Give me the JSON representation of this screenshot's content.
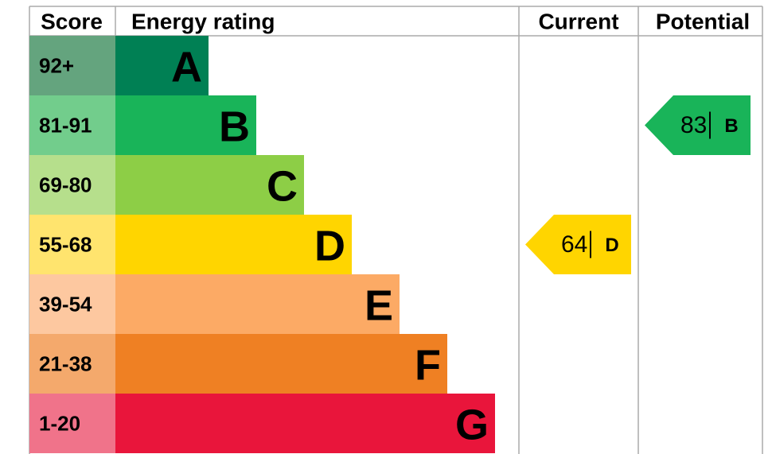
{
  "header": {
    "score": "Score",
    "rating": "Energy rating",
    "current": "Current",
    "potential": "Potential"
  },
  "bands": [
    {
      "score": "92+",
      "letter": "A",
      "color": "#008054",
      "score_color": "#64a47e"
    },
    {
      "score": "81-91",
      "letter": "B",
      "color": "#19b459",
      "score_color": "#72cd8c"
    },
    {
      "score": "69-80",
      "letter": "C",
      "color": "#8dce46",
      "score_color": "#b6df8c"
    },
    {
      "score": "55-68",
      "letter": "D",
      "color": "#ffd500",
      "score_color": "#ffe46e"
    },
    {
      "score": "39-54",
      "letter": "E",
      "color": "#fcaa65",
      "score_color": "#fdc8a0"
    },
    {
      "score": "21-38",
      "letter": "F",
      "color": "#ef8023",
      "score_color": "#f4a96c"
    },
    {
      "score": "1-20",
      "letter": "G",
      "color": "#e9153b",
      "score_color": "#f0738a"
    }
  ],
  "current": {
    "value": 64,
    "letter": "D"
  },
  "potential": {
    "value": 83,
    "letter": "B"
  }
}
